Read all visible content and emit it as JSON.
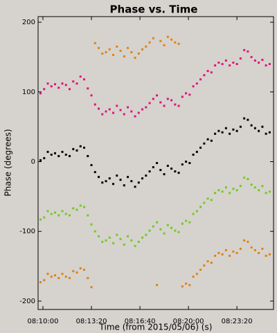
{
  "chart_data": {
    "type": "scatter",
    "title": "Phase vs. Time",
    "xlabel": "Time (from 2015/05/06) (s)",
    "ylabel": "Phase (degrees)",
    "xlim": [
      29380,
      30351
    ],
    "ylim": [
      -212,
      208
    ],
    "xticks": [
      {
        "value": 29400,
        "label": "08:10:00"
      },
      {
        "value": 29600,
        "label": "08:13:20"
      },
      {
        "value": 29800,
        "label": "08:16:40"
      },
      {
        "value": 30000,
        "label": "08:20:00"
      },
      {
        "value": 30200,
        "label": "08:23:20"
      }
    ],
    "yticks": [
      -200,
      -100,
      0,
      100,
      200
    ],
    "x": [
      29390,
      29405,
      29420,
      29435,
      29450,
      29465,
      29480,
      29495,
      29510,
      29525,
      29540,
      29555,
      29570,
      29585,
      29600,
      29615,
      29630,
      29645,
      29660,
      29675,
      29690,
      29705,
      29720,
      29735,
      29750,
      29765,
      29780,
      29795,
      29810,
      29825,
      29840,
      29855,
      29870,
      29885,
      29900,
      29915,
      29930,
      29945,
      29960,
      29975,
      29990,
      30005,
      30020,
      30035,
      30050,
      30065,
      30080,
      30095,
      30110,
      30125,
      30140,
      30155,
      30170,
      30185,
      30200,
      30215,
      30230,
      30245,
      30260,
      30275,
      30290,
      30305,
      30320,
      30335
    ],
    "series": [
      {
        "color": "#e0820f",
        "values": [
          -173,
          -170,
          -161,
          -165,
          -163,
          -167,
          -161,
          -165,
          -167,
          -157,
          -159,
          -153,
          -155,
          -167,
          -180,
          170,
          163,
          155,
          157,
          161,
          153,
          165,
          159,
          151,
          163,
          157,
          149,
          155,
          161,
          165,
          171,
          177,
          -177,
          173,
          167,
          179,
          175,
          171,
          169,
          -179,
          -175,
          -177,
          -165,
          -161,
          -155,
          -149,
          -143,
          -145,
          -135,
          -131,
          -133,
          -127,
          -135,
          -129,
          -131,
          -125,
          -113,
          -115,
          -123,
          -127,
          -131,
          -125,
          -135,
          -133
        ]
      },
      {
        "color": "#e0147a",
        "values": [
          98,
          104,
          112,
          108,
          111,
          106,
          112,
          110,
          104,
          115,
          112,
          122,
          118,
          105,
          95,
          82,
          76,
          68,
          72,
          75,
          70,
          80,
          74,
          68,
          78,
          72,
          65,
          70,
          75,
          78,
          84,
          90,
          95,
          85,
          80,
          90,
          88,
          82,
          80,
          93,
          98,
          96,
          108,
          112,
          118,
          124,
          130,
          128,
          138,
          142,
          140,
          145,
          138,
          142,
          140,
          148,
          160,
          158,
          150,
          145,
          142,
          146,
          138,
          140
        ]
      },
      {
        "color": "#000000",
        "values": [
          2,
          5,
          14,
          10,
          12,
          8,
          14,
          10,
          8,
          18,
          16,
          22,
          20,
          8,
          -5,
          -15,
          -22,
          -30,
          -28,
          -24,
          -32,
          -20,
          -26,
          -34,
          -22,
          -28,
          -36,
          -30,
          -24,
          -20,
          -14,
          -8,
          -2,
          -12,
          -18,
          -6,
          -10,
          -14,
          -16,
          -4,
          0,
          -2,
          10,
          14,
          20,
          26,
          32,
          30,
          40,
          44,
          42,
          48,
          40,
          46,
          44,
          50,
          62,
          60,
          52,
          48,
          44,
          50,
          40,
          42
        ]
      },
      {
        "color": "#6fcc1c",
        "values": [
          -83,
          -80,
          -71,
          -75,
          -73,
          -77,
          -71,
          -75,
          -77,
          -67,
          -69,
          -63,
          -65,
          -77,
          -90,
          -100,
          -107,
          -115,
          -113,
          -109,
          -117,
          -105,
          -111,
          -119,
          -107,
          -113,
          -121,
          -115,
          -109,
          -105,
          -99,
          -93,
          -87,
          -97,
          -103,
          -91,
          -95,
          -99,
          -101,
          -89,
          -85,
          -87,
          -75,
          -71,
          -65,
          -59,
          -53,
          -55,
          -45,
          -41,
          -43,
          -37,
          -45,
          -39,
          -41,
          -35,
          -23,
          -25,
          -33,
          -37,
          -41,
          -35,
          -45,
          -43
        ]
      }
    ]
  }
}
